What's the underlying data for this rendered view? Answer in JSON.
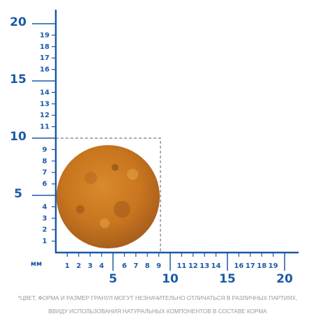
{
  "ruler": {
    "unit": "мм",
    "y_minor": [
      1,
      2,
      3,
      4,
      6,
      7,
      8,
      9,
      11,
      12,
      13,
      14,
      16,
      17,
      18,
      19
    ],
    "y_major": [
      5,
      10,
      15,
      20
    ],
    "x_minor": [
      1,
      2,
      3,
      4,
      6,
      7,
      8,
      9,
      11,
      12,
      13,
      14,
      16,
      17,
      18,
      19
    ],
    "x_major": [
      5,
      10,
      20,
      15
    ]
  },
  "footnote": [
    "*ЦВЕТ, ФОРМА И РАЗМЕР ГРАНУЛ МОГУТ НЕЗНАЧИТЕЛЬНО ОТЛИЧАТЬСЯ В РАЗЛИЧНЫХ ПАРТИЯХ,",
    "ВВИДУ ИСПОЛЬЗОВАНИЯ НАТУРАЛЬНЫХ КОМПОНЕНТОВ В СОСТАВЕ КОРМА"
  ]
}
